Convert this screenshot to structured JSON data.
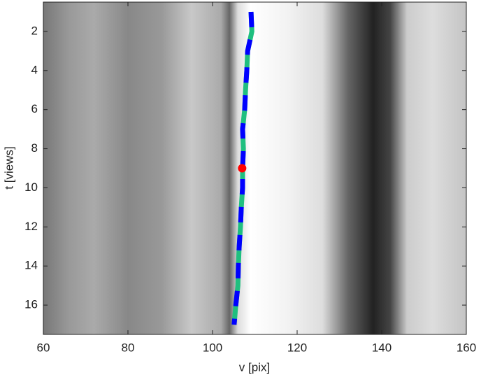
{
  "chart_data": {
    "type": "line",
    "x_label": "v [pix]",
    "y_label": "t [views]",
    "xlim": [
      60,
      160
    ],
    "xticks": [
      60,
      80,
      100,
      120,
      140,
      160
    ],
    "ylim": [
      0.5,
      17.5
    ],
    "yticks": [
      2,
      4,
      6,
      8,
      10,
      12,
      14,
      16
    ],
    "y_reversed": true,
    "series": [
      {
        "color": "#1fbf7f",
        "style": "solid",
        "x": [
          109.1,
          109.3,
          108.3,
          108.1,
          107.8,
          107.6,
          107.1,
          107.3,
          107.1,
          107.1,
          106.8,
          106.6,
          106.3,
          106.1,
          106.0,
          105.5,
          105.1
        ],
        "values": [
          1,
          2,
          3,
          4,
          5,
          6,
          7,
          8,
          9,
          10,
          11,
          12,
          13,
          14,
          15,
          16,
          17
        ]
      },
      {
        "color": "#0000ff",
        "style": "dashed",
        "x": [
          109.1,
          109.3,
          108.3,
          108.1,
          107.8,
          107.6,
          107.1,
          107.3,
          107.1,
          107.1,
          106.8,
          106.6,
          106.3,
          106.1,
          106.0,
          105.5,
          105.1
        ],
        "values": [
          1,
          2,
          3,
          4,
          5,
          6,
          7,
          8,
          9,
          10,
          11,
          12,
          13,
          14,
          15,
          16,
          17
        ]
      }
    ],
    "marker": {
      "x": 107,
      "y": 9,
      "color": "#ff0000"
    }
  }
}
